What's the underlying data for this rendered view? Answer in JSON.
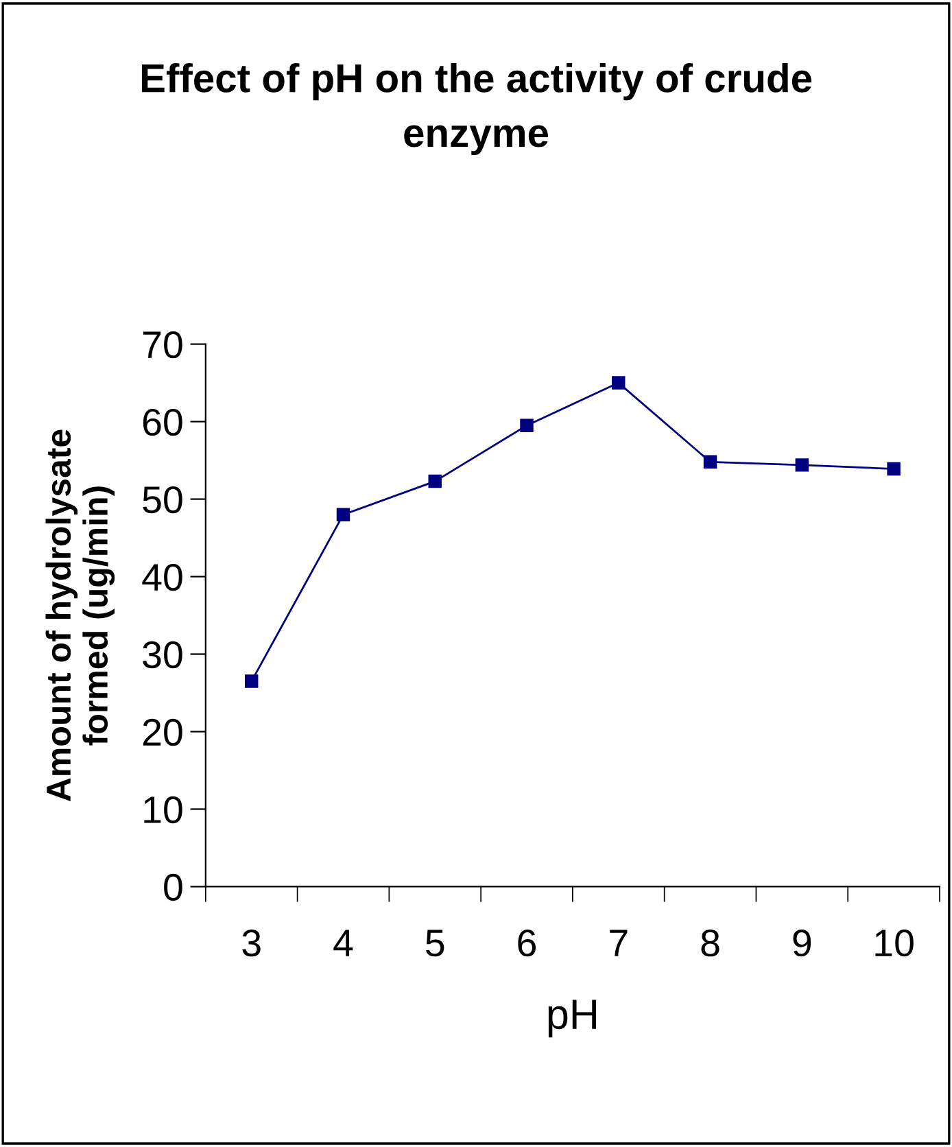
{
  "chart_data": {
    "type": "line",
    "title": "Effect of pH on the activity of crude\nenzyme",
    "xlabel": "pH",
    "ylabel": "Amount of hydrolysate\nformed (ug/min)",
    "categories": [
      "3",
      "4",
      "5",
      "6",
      "7",
      "8",
      "9",
      "10"
    ],
    "series": [
      {
        "color": "#000080",
        "values": [
          26.5,
          48,
          52.3,
          59.5,
          65,
          54.8,
          54.4,
          53.9
        ]
      }
    ],
    "ylim": [
      0,
      70
    ],
    "yticks": [
      0,
      10,
      20,
      30,
      40,
      50,
      60,
      70
    ],
    "grid": false,
    "legend": false,
    "marker": "square",
    "line_style": "solid"
  }
}
